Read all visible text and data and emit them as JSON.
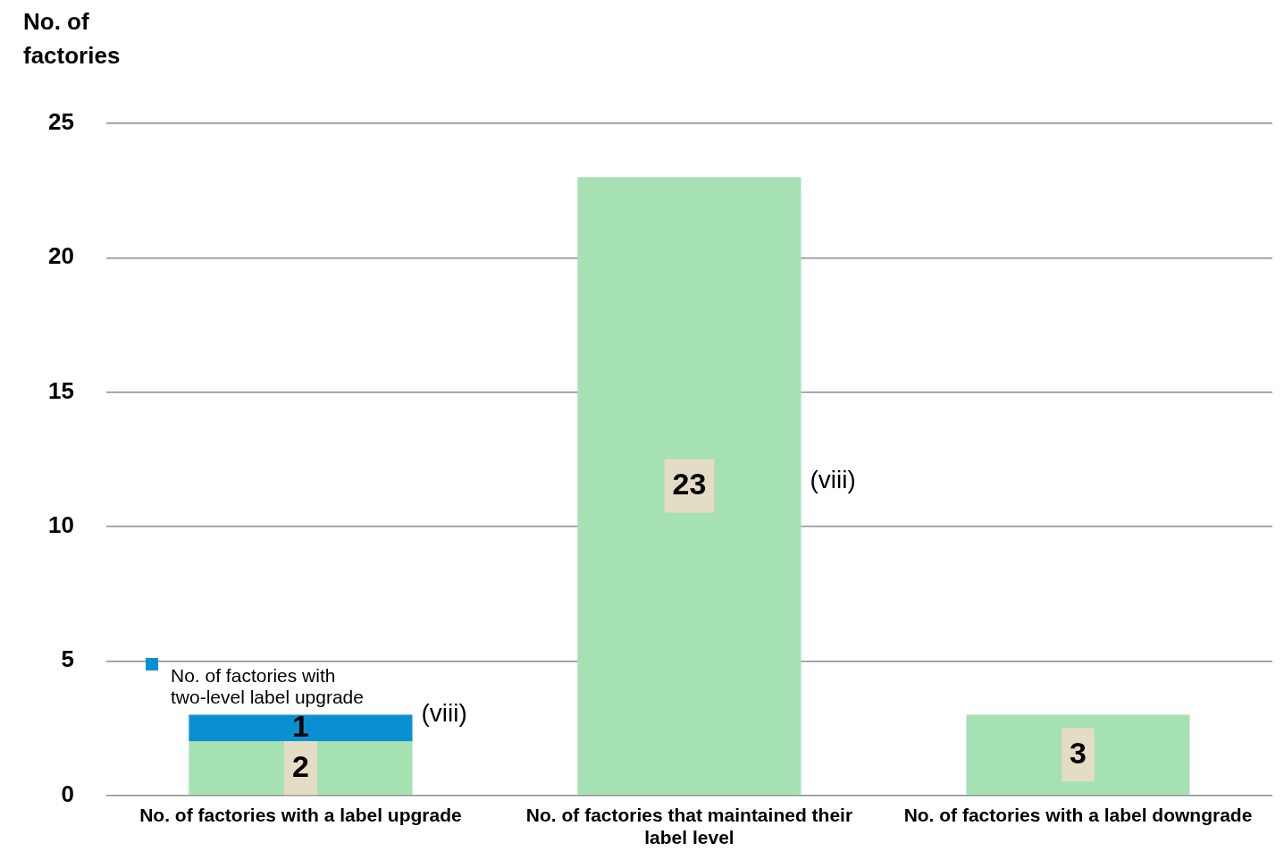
{
  "chart_data": {
    "type": "bar",
    "stacked": true,
    "ylabel": "No. of\nfactories",
    "categories": [
      "No. of factories with a label upgrade",
      "No. of factories that maintained their label level",
      "No. of factories with a label downgrade"
    ],
    "series": [
      {
        "color": "#a6e1b3",
        "values": [
          2,
          23,
          3
        ]
      },
      {
        "name": "No. of factories with two-level label upgrade",
        "color": "#0a90d2",
        "values": [
          1,
          null,
          null
        ]
      }
    ],
    "ylim": [
      0,
      25
    ],
    "yticks": [
      0,
      5,
      10,
      15,
      20,
      25
    ],
    "grid": "y",
    "legend": "bottom left",
    "data_labels": true,
    "annotations": [
      "(viii)",
      "(viii)"
    ]
  }
}
